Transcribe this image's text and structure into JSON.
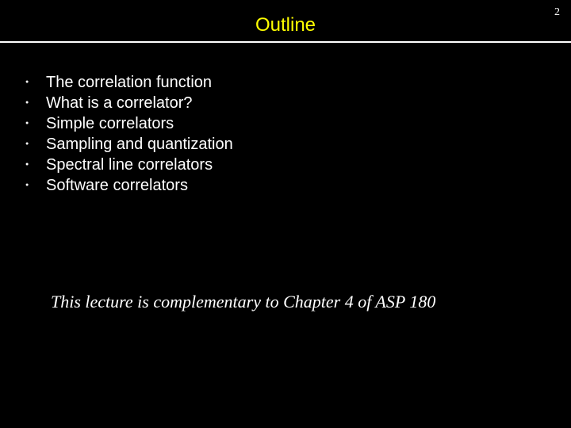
{
  "page_number": "2",
  "title": "Outline",
  "bullets": [
    "The correlation function",
    "What is a correlator?",
    "Simple correlators",
    "Sampling and quantization",
    "Spectral line correlators",
    "Software correlators"
  ],
  "footnote": "This lecture is complementary to Chapter 4 of ASP 180",
  "colors": {
    "background": "#000000",
    "title": "#ffff00",
    "text": "#ffffff",
    "rule": "#ffffff"
  }
}
